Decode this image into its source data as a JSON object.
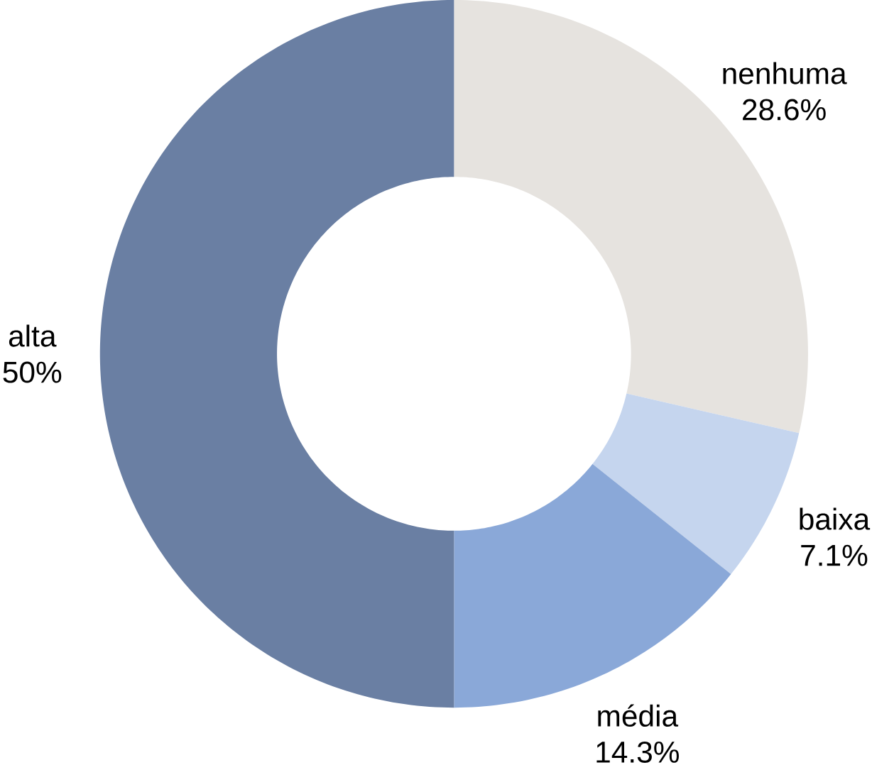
{
  "chart_data": {
    "type": "donut",
    "categories": [
      "nenhuma",
      "baixa",
      "média",
      "alta"
    ],
    "values": [
      28.6,
      7.1,
      14.3,
      50
    ],
    "value_labels": [
      "28.6%",
      "7.1%",
      "14.3%",
      "50%"
    ],
    "colors": [
      "#e6e3df",
      "#c5d5ee",
      "#8aa8d8",
      "#6a7fa3"
    ]
  }
}
